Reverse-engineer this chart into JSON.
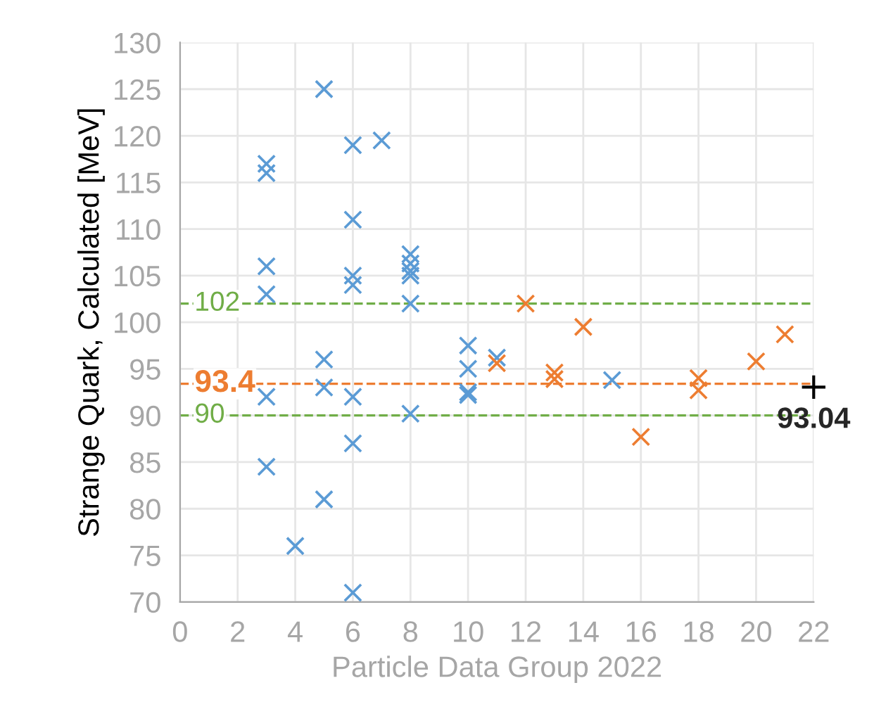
{
  "chart_data": {
    "type": "scatter",
    "xlabel": "Particle Data Group 2022",
    "ylabel": "Strange Quark, Calculated [MeV]",
    "xlim": [
      0,
      22
    ],
    "xticks": [
      0,
      2,
      4,
      6,
      8,
      10,
      12,
      14,
      16,
      18,
      20,
      22
    ],
    "ylim": [
      70,
      130
    ],
    "yticks": [
      70,
      75,
      80,
      85,
      90,
      95,
      100,
      105,
      110,
      115,
      120,
      125,
      130
    ],
    "grid": true,
    "marker": "cross",
    "legend": false,
    "series": [
      {
        "color": "#5b9bd5",
        "x": [
          3,
          3,
          3,
          3,
          3,
          3,
          4,
          5,
          5,
          5,
          5,
          6,
          6,
          6,
          6,
          6,
          6,
          6,
          7,
          8,
          8,
          8,
          8,
          8,
          8,
          10,
          10,
          10,
          10,
          11,
          15
        ],
        "values": [
          117,
          116,
          106,
          103,
          92,
          84.5,
          76,
          125,
          96,
          93,
          81,
          119,
          111,
          105,
          104,
          92,
          87,
          71,
          119.5,
          107.3,
          106.3,
          105.5,
          105,
          102,
          90.2,
          97.5,
          95,
          92.5,
          92.2,
          96.2,
          93.8
        ]
      },
      {
        "color": "#ed7d31",
        "x": [
          11,
          12,
          13,
          13,
          14,
          16,
          18,
          18,
          20,
          21
        ],
        "values": [
          95.6,
          102,
          94.6,
          93.9,
          99.5,
          87.7,
          94,
          92.7,
          95.8,
          98.7
        ]
      }
    ],
    "ref_lines": [
      {
        "axis": "y",
        "value": 102,
        "label": "102",
        "color": "#70ad47",
        "line_style": "dashed"
      },
      {
        "axis": "y",
        "value": 93.4,
        "label": "93.4",
        "color": "#ed7d31",
        "line_style": "dashed"
      },
      {
        "axis": "y",
        "value": 90,
        "label": "90",
        "color": "#70ad47",
        "line_style": "dashed"
      }
    ],
    "annotations": [
      {
        "text": "93.04",
        "x": 22,
        "y": 93.04
      }
    ]
  }
}
